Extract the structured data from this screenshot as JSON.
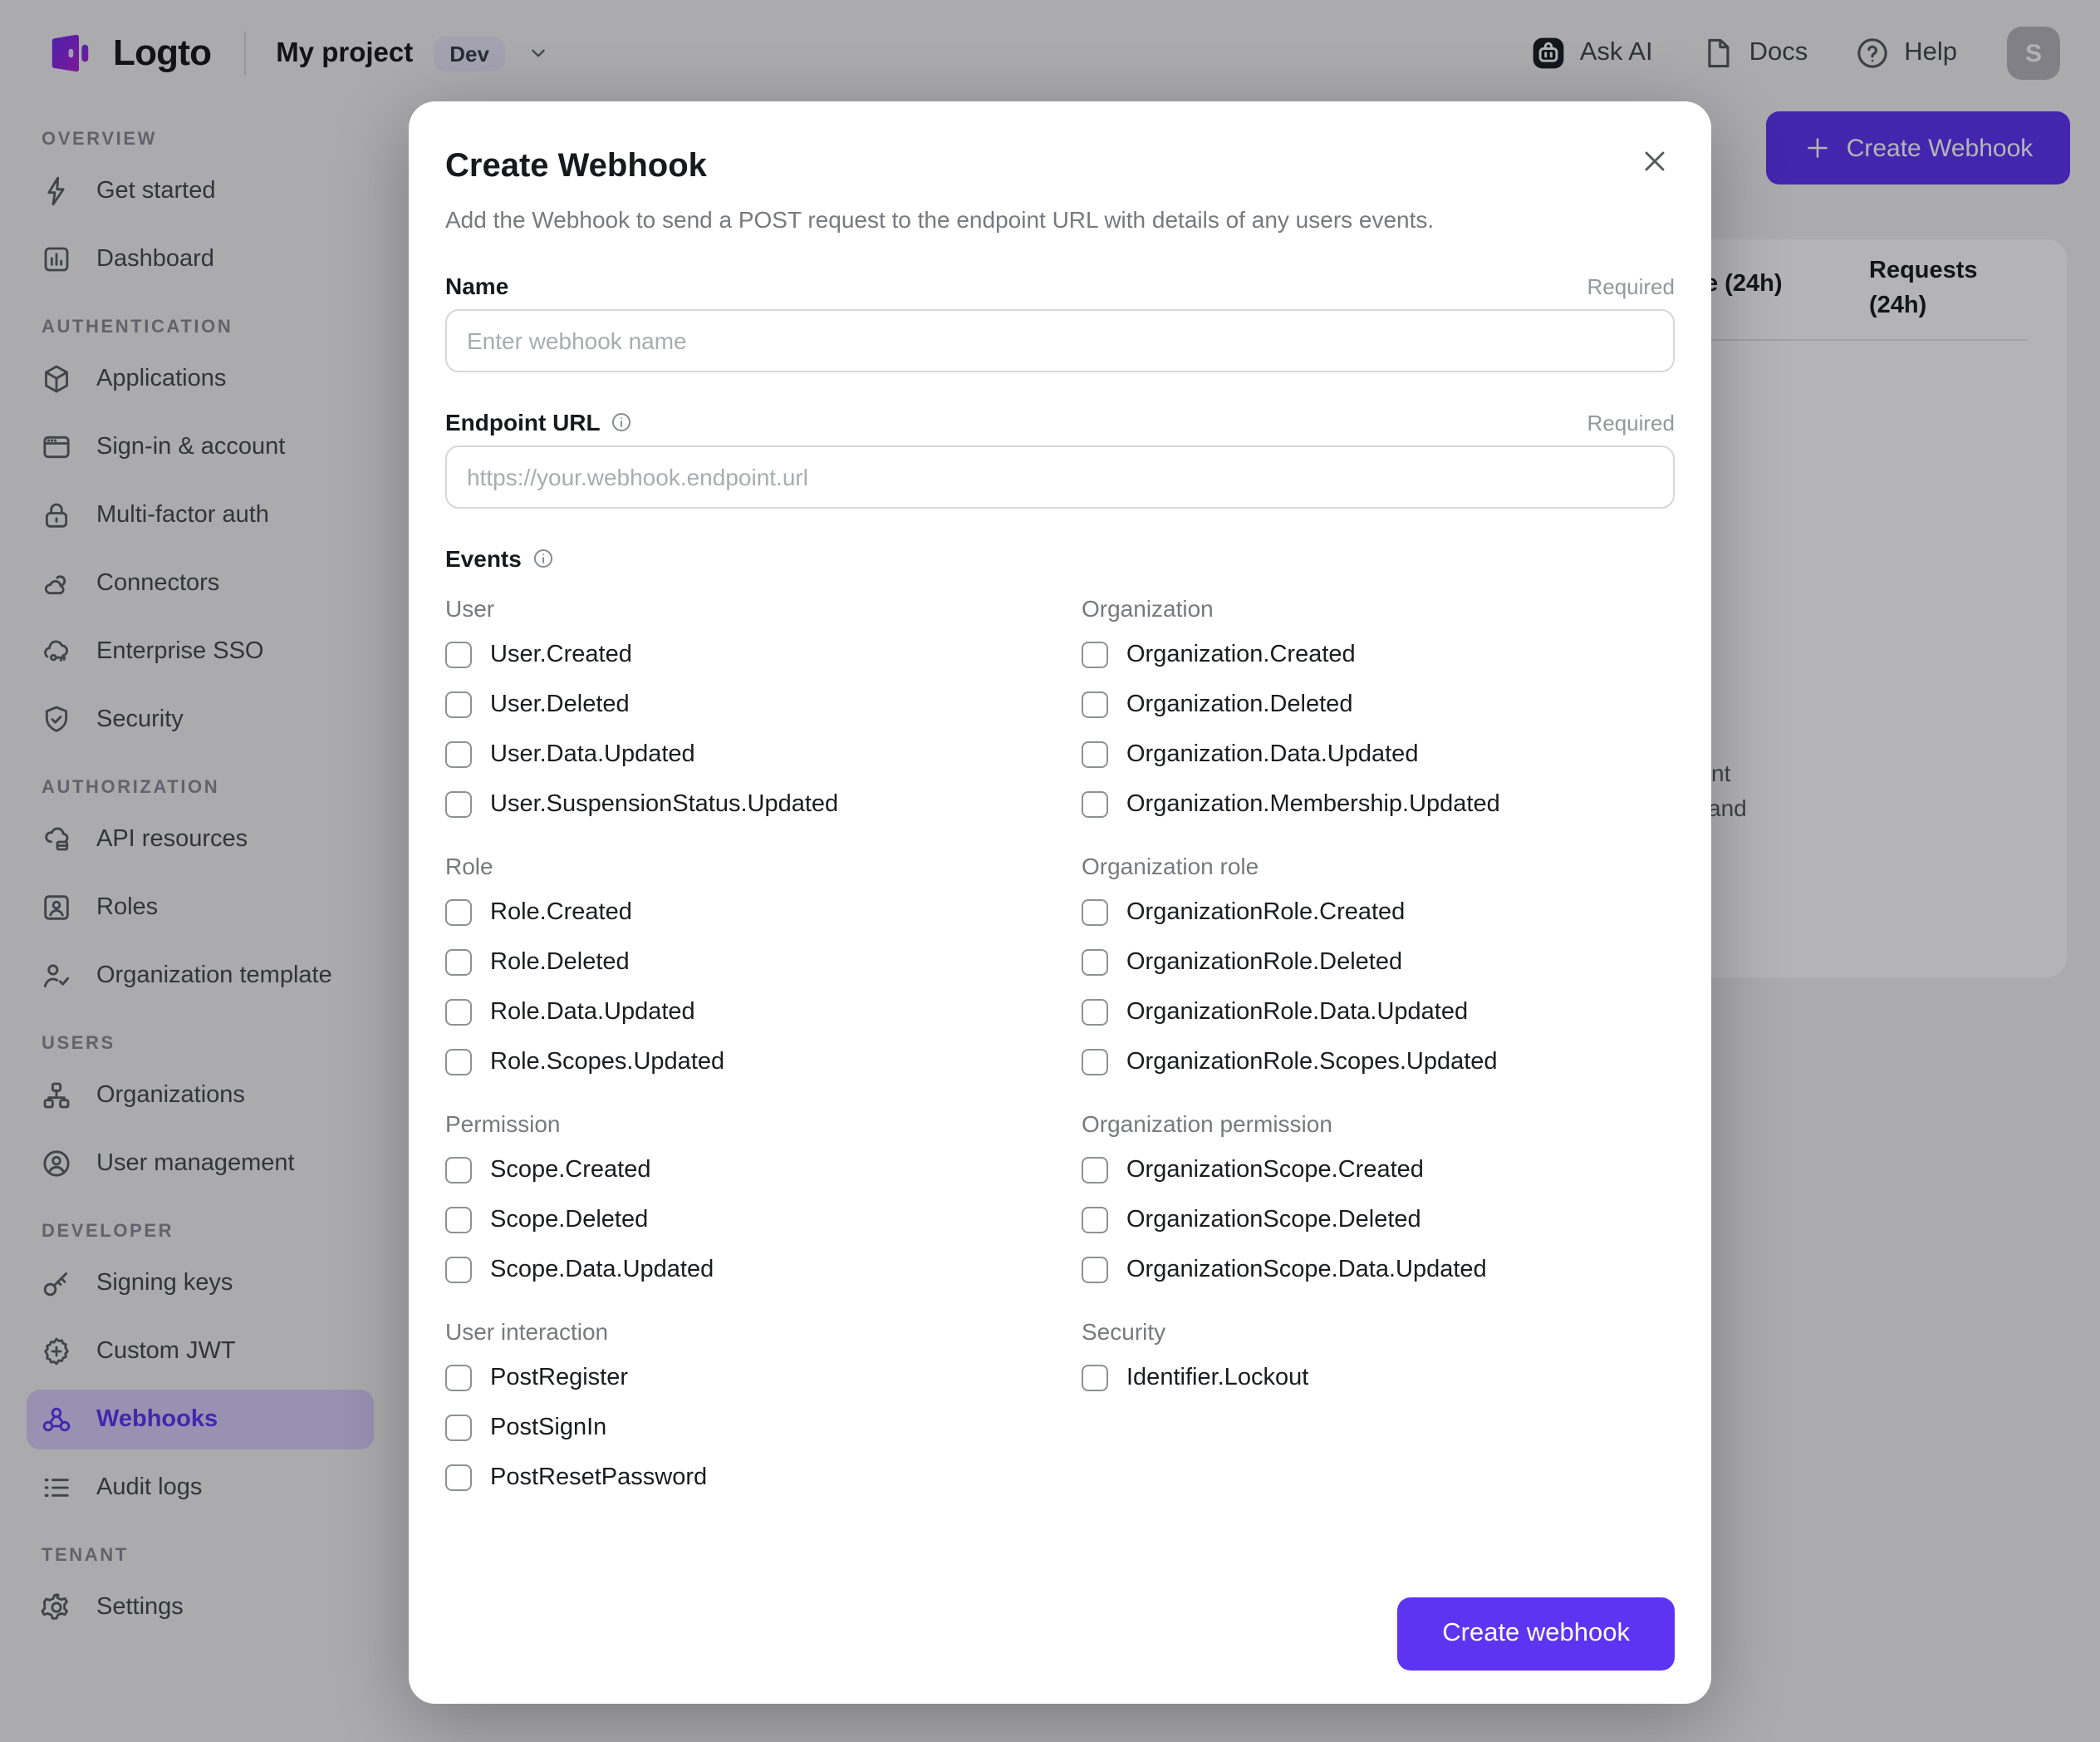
{
  "topbar": {
    "logo_text": "Logto",
    "project_name": "My project",
    "env_badge": "Dev",
    "ask_ai_label": "Ask AI",
    "docs_label": "Docs",
    "help_label": "Help",
    "avatar_initial": "S"
  },
  "sidebar": {
    "sections": [
      {
        "label": "OVERVIEW",
        "items": [
          {
            "label": "Get started",
            "icon": "lightning"
          },
          {
            "label": "Dashboard",
            "icon": "dashboard"
          }
        ]
      },
      {
        "label": "AUTHENTICATION",
        "items": [
          {
            "label": "Applications",
            "icon": "cube"
          },
          {
            "label": "Sign-in & account",
            "icon": "window"
          },
          {
            "label": "Multi-factor auth",
            "icon": "lock"
          },
          {
            "label": "Connectors",
            "icon": "connectors"
          },
          {
            "label": "Enterprise SSO",
            "icon": "sso-cloud"
          },
          {
            "label": "Security",
            "icon": "shield-check"
          }
        ]
      },
      {
        "label": "AUTHORIZATION",
        "items": [
          {
            "label": "API resources",
            "icon": "api-cloud"
          },
          {
            "label": "Roles",
            "icon": "role-card"
          },
          {
            "label": "Organization template",
            "icon": "person-check"
          }
        ]
      },
      {
        "label": "USERS",
        "items": [
          {
            "label": "Organizations",
            "icon": "org-tree"
          },
          {
            "label": "User management",
            "icon": "user-circle"
          }
        ]
      },
      {
        "label": "DEVELOPER",
        "items": [
          {
            "label": "Signing keys",
            "icon": "key"
          },
          {
            "label": "Custom JWT",
            "icon": "jwt-seal"
          },
          {
            "label": "Webhooks",
            "icon": "webhook",
            "active": true
          },
          {
            "label": "Audit logs",
            "icon": "audit-list"
          }
        ]
      },
      {
        "label": "TENANT",
        "items": [
          {
            "label": "Settings",
            "icon": "gear"
          }
        ]
      }
    ]
  },
  "page": {
    "create_webhook_button": "Create Webhook",
    "table": {
      "success_col_fragment": "e (24h)",
      "requests_col": "Requests (24h)",
      "clipped_text_1": "nt",
      "clipped_text_2": "and"
    }
  },
  "modal": {
    "title": "Create Webhook",
    "subtitle": "Add the Webhook to send a POST request to the endpoint URL with details of any users events.",
    "name": {
      "label": "Name",
      "required": "Required",
      "placeholder": "Enter webhook name",
      "value": ""
    },
    "endpoint": {
      "label": "Endpoint URL",
      "required": "Required",
      "placeholder": "https://your.webhook.endpoint.url",
      "value": ""
    },
    "events": {
      "label": "Events",
      "groups": [
        {
          "name": "User",
          "items": [
            "User.Created",
            "User.Deleted",
            "User.Data.Updated",
            "User.SuspensionStatus.Updated"
          ]
        },
        {
          "name": "Organization",
          "items": [
            "Organization.Created",
            "Organization.Deleted",
            "Organization.Data.Updated",
            "Organization.Membership.Updated"
          ]
        },
        {
          "name": "Role",
          "items": [
            "Role.Created",
            "Role.Deleted",
            "Role.Data.Updated",
            "Role.Scopes.Updated"
          ]
        },
        {
          "name": "Organization role",
          "items": [
            "OrganizationRole.Created",
            "OrganizationRole.Deleted",
            "OrganizationRole.Data.Updated",
            "OrganizationRole.Scopes.Updated"
          ]
        },
        {
          "name": "Permission",
          "items": [
            "Scope.Created",
            "Scope.Deleted",
            "Scope.Data.Updated"
          ]
        },
        {
          "name": "Organization permission",
          "items": [
            "OrganizationScope.Created",
            "OrganizationScope.Deleted",
            "OrganizationScope.Data.Updated"
          ]
        },
        {
          "name": "User interaction",
          "items": [
            "PostRegister",
            "PostSignIn",
            "PostResetPassword"
          ]
        },
        {
          "name": "Security",
          "items": [
            "Identifier.Lockout"
          ]
        }
      ],
      "checked": []
    },
    "submit_label": "Create webhook"
  },
  "colors": {
    "accent": "#5d34f2",
    "sidebar_active_bg": "#d9cdf9",
    "page_bg": "#f3f2f4",
    "modal_bg": "#ffffff",
    "env_badge_bg": "#e9e5f6",
    "avatar_bg": "#b6b5bc",
    "checkbox_border": "#8e9194"
  }
}
